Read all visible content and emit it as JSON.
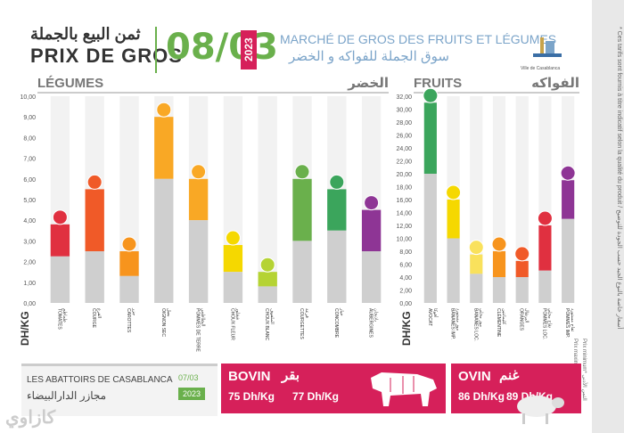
{
  "header": {
    "title_ar": "ثمن البيع بالجملة",
    "title_fr": "PRIX DE GROS",
    "date": "08/03",
    "year": "2023",
    "market_fr": "MARCHÉ DE GROS DES FRUITS ET LÉGUMES",
    "market_ar": "سوق الجملة للفواكه و الخضر",
    "logo_text": "Ville de Casablanca"
  },
  "sidebar": {
    "note": "* Ces tarifs sont fournis à titre indicatif selon la qualité du produit / أسعار خاصة بالنوع الجيد حسب الجودة للتوضيح",
    "legend_max": "Prix maximum* الثمن الأقصى",
    "legend_min": "Prix minimum* الثمن الأدنى"
  },
  "chart_data": [
    {
      "type": "bar",
      "title": "LÉGUMES",
      "title_ar": "الخضر",
      "ylabel": "DH/KG",
      "ylim": [
        0,
        10
      ],
      "yticks": [
        "0,00",
        "1,00",
        "2,00",
        "3,00",
        "4,00",
        "5,00",
        "6,00",
        "7,00",
        "8,00",
        "9,00",
        "10,00"
      ],
      "categories": [
        "TOMATES",
        "COURGE",
        "CAROTTES",
        "OIGNON SEC",
        "POMMES DE TERRE",
        "CHOUX FLEUR",
        "CHOUX BLANC",
        "COURGETTES",
        "CONCOMBRE",
        "AUBERGINES"
      ],
      "categories_ar": [
        "طماطم",
        "القرع",
        "جزر",
        "بصل",
        "البطاطس",
        "شفلور",
        "الملفوف",
        "قرعة",
        "خيار",
        "باذنجان"
      ],
      "min": [
        2.25,
        2.5,
        1.3,
        6.0,
        4.0,
        1.5,
        0.8,
        3.0,
        3.5,
        2.5
      ],
      "max": [
        3.8,
        5.5,
        2.5,
        9.0,
        6.0,
        2.8,
        1.5,
        6.0,
        5.5,
        4.5
      ],
      "colors": [
        "#e03040",
        "#f05a28",
        "#f7941d",
        "#f9a825",
        "#f9a825",
        "#f5d800",
        "#b5d334",
        "#6ab04c",
        "#3ba55c",
        "#8e3595"
      ]
    },
    {
      "type": "bar",
      "title": "FRUITS",
      "title_ar": "الفواكه",
      "ylabel": "DH/KG",
      "ylim": [
        0,
        32
      ],
      "yticks": [
        "0,00",
        "2,00",
        "4,00",
        "6,00",
        "8,00",
        "10,00",
        "12,00",
        "14,00",
        "16,00",
        "18,00",
        "20,00",
        "22,00",
        "24,00",
        "26,00",
        "28,00",
        "30,00",
        "32,00"
      ],
      "categories": [
        "AVOCAT",
        "BANANES IMP.",
        "BANANES LOC.",
        "CLÉMENTINE",
        "ORANGES",
        "POMMES LOC.",
        "POMMES IMP."
      ],
      "categories_ar": [
        "أفوكا",
        "موز مستورد",
        "موز محلي",
        "كليمانتين",
        "البرتقال",
        "تفاح محلي",
        "تفاح مستورد"
      ],
      "min": [
        20,
        10,
        4.5,
        4,
        4,
        5,
        13
      ],
      "max": [
        31,
        16,
        7.5,
        8,
        6.5,
        12,
        19
      ],
      "colors": [
        "#3ba55c",
        "#f5d800",
        "#f9e15c",
        "#f7941d",
        "#f05a28",
        "#e03040",
        "#8e3595"
      ]
    }
  ],
  "abattoir": {
    "name_fr": "LES ABATTOIRS DE CASABLANCA",
    "name_ar": "مجازر الدارالبيضاء",
    "date": "07/03",
    "year": "2023"
  },
  "bovin": {
    "label": "BOVIN",
    "label_ar": "بقر",
    "price_min": "75 Dh/Kg",
    "price_max": "77 Dh/Kg"
  },
  "ovin": {
    "label": "OVIN",
    "label_ar": "غنم",
    "price_min": "86 Dh/Kg",
    "price_max": "89 Dh/Kg"
  },
  "watermark": "كازاوي"
}
